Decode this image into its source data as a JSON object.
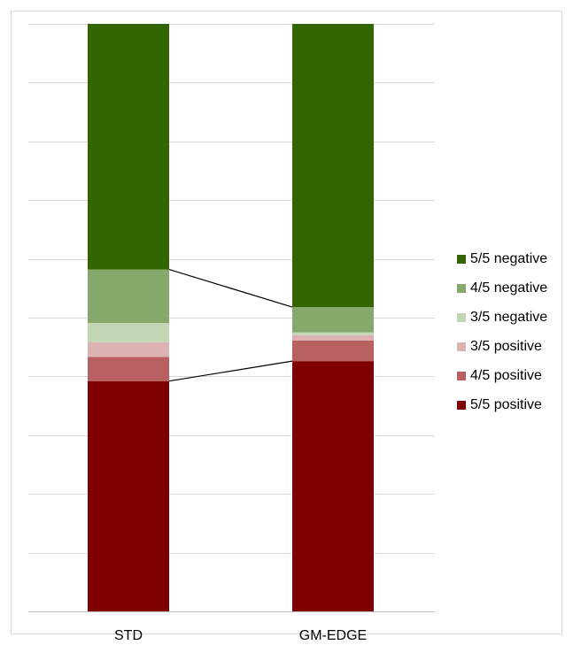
{
  "chart_data": {
    "type": "bar",
    "stacked": true,
    "normalized_100_percent": true,
    "categories": [
      "STD",
      "GM-EDGE"
    ],
    "series": [
      {
        "name": "5/5 positive",
        "color": "#7f0000",
        "values": [
          39.2,
          42.6
        ]
      },
      {
        "name": "4/5 positive",
        "color": "#b8605f",
        "values": [
          4.1,
          3.5
        ]
      },
      {
        "name": "3/5 positive",
        "color": "#ddb2b2",
        "values": [
          2.5,
          0.9
        ]
      },
      {
        "name": "3/5 negative",
        "color": "#c2d6b4",
        "values": [
          3.3,
          0.5
        ]
      },
      {
        "name": "4/5 negative",
        "color": "#86a86a",
        "values": [
          9.1,
          4.3
        ]
      },
      {
        "name": "5/5 negative",
        "color": "#336600",
        "values": [
          41.8,
          48.2
        ]
      }
    ],
    "series_lines": [
      {
        "between": "4/5 negative | 5/5 negative"
      },
      {
        "between": "5/5 positive | 4/5 positive"
      }
    ],
    "ylim": [
      0,
      100
    ],
    "gridlines": 10,
    "grid": true,
    "legend_position": "right",
    "title": "",
    "xlabel": "",
    "ylabel": ""
  }
}
